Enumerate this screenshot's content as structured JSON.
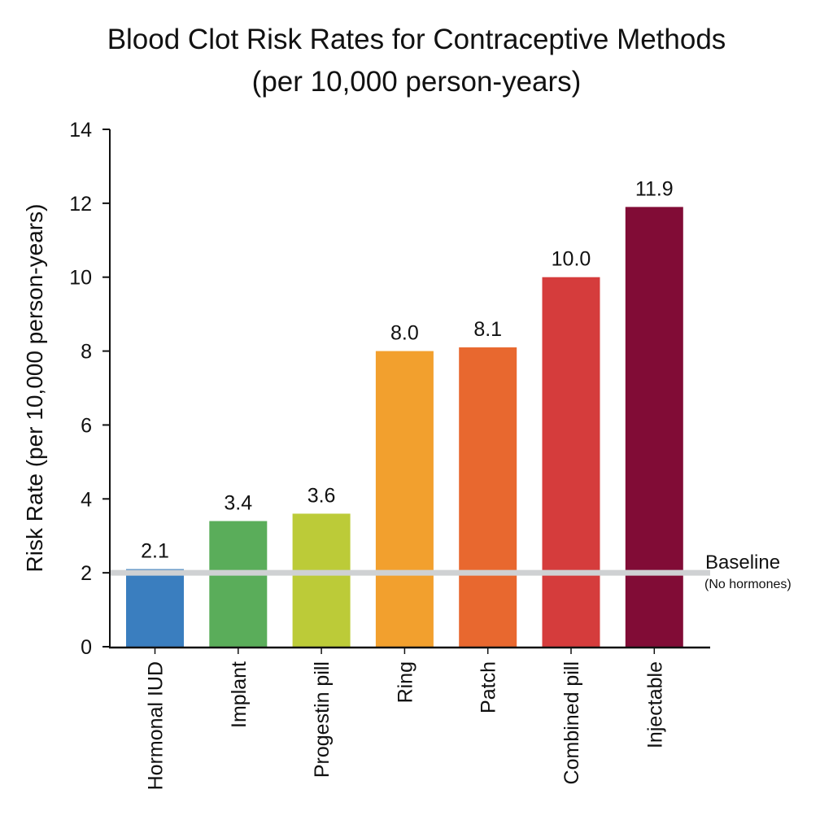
{
  "chart_data": {
    "type": "bar",
    "title": "Blood Clot Risk Rates for Contraceptive Methods",
    "subtitle": "(per 10,000 person-years)",
    "xlabel": "",
    "ylabel": "Risk Rate (per 10,000 person-years)",
    "ylim": [
      0,
      14
    ],
    "yticks": [
      0,
      2,
      4,
      6,
      8,
      10,
      12,
      14
    ],
    "grid": false,
    "categories": [
      "Hormonal IUD",
      "Implant",
      "Progestin pill",
      "Ring",
      "Patch",
      "Combined pill",
      "Injectable"
    ],
    "values": [
      2.1,
      3.4,
      3.6,
      8.0,
      8.1,
      10.0,
      11.9
    ],
    "value_labels": [
      "2.1",
      "3.4",
      "3.6",
      "8.0",
      "8.1",
      "10.0",
      "11.9"
    ],
    "colors": [
      "#3a7ebf",
      "#5aad5a",
      "#bccb38",
      "#f2a02e",
      "#e8682f",
      "#d53c3c",
      "#810c36"
    ],
    "reference_line": {
      "value": 2,
      "label": "Baseline",
      "sublabel": "(No hormones)",
      "color": "#cfd1d3"
    }
  }
}
